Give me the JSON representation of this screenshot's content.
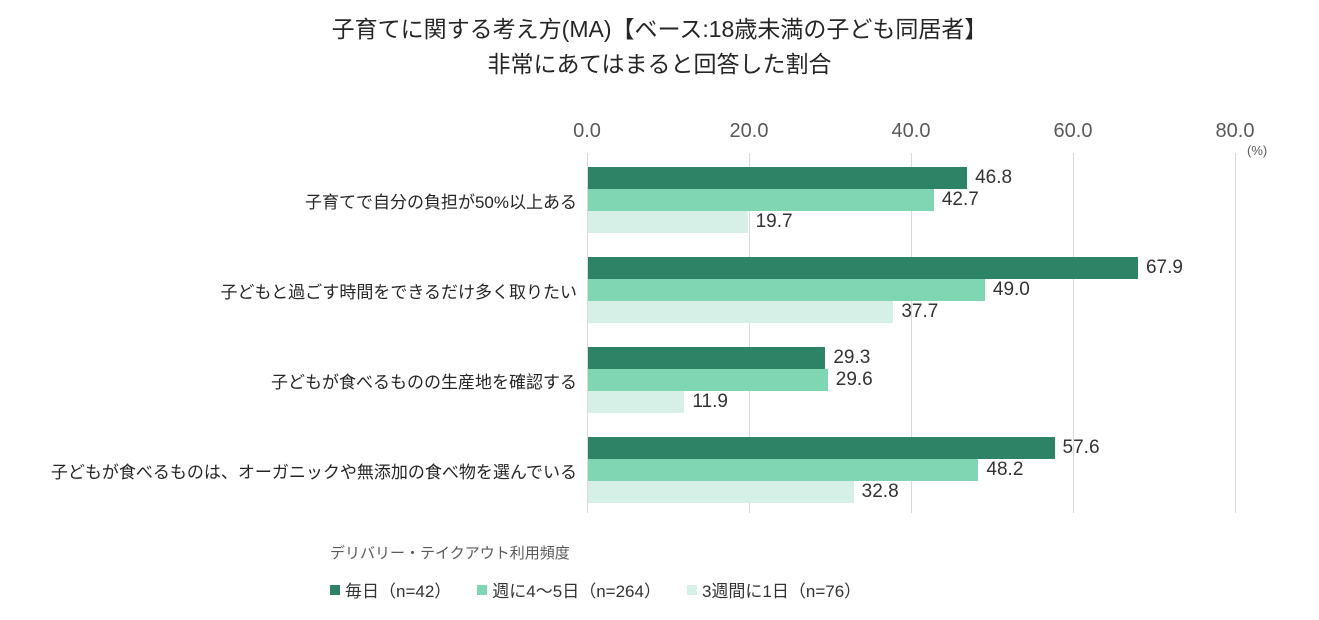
{
  "title": {
    "line1": "子育てに関する考え方(MA)【ベース:18歳未満の子ども同居者】",
    "line2": "非常にあてはまると回答した割合"
  },
  "axis": {
    "ticks": [
      "0.0",
      "20.0",
      "40.0",
      "60.0",
      "80.0"
    ],
    "unit": "(%)"
  },
  "legend": {
    "title": "デリバリー・テイクアウト利用頻度"
  },
  "colors": {
    "gridline": "#d9d9d9",
    "axis_text": "#595959",
    "value_text": "#333333"
  },
  "chart_data": {
    "type": "bar",
    "orientation": "horizontal",
    "title": "子育てに関する考え方(MA)【ベース:18歳未満の子ども同居者】",
    "subtitle": "非常にあてはまると回答した割合",
    "xlabel": "(%)",
    "xlim": [
      0,
      80
    ],
    "xticks": [
      0,
      20,
      40,
      60,
      80
    ],
    "grid": true,
    "legend_position": "bottom",
    "legend_title": "デリバリー・テイクアウト利用頻度",
    "categories": [
      "子育てで自分の負担が50%以上ある",
      "子どもと過ごす時間をできるだけ多く取りたい",
      "子どもが食べるものの生産地を確認する",
      "子どもが食べるものは、オーガニックや無添加の食べ物を選んでいる"
    ],
    "series": [
      {
        "name": "毎日（n=42）",
        "color": "#2d8365",
        "values": [
          46.8,
          67.9,
          29.3,
          57.6
        ],
        "labels": [
          "46.8",
          "67.9",
          "29.3",
          "57.6"
        ]
      },
      {
        "name": "週に4～5日（n=264）",
        "color": "#7fd6b3",
        "values": [
          42.7,
          49.0,
          29.6,
          48.2
        ],
        "labels": [
          "42.7",
          "49.0",
          "29.6",
          "48.2"
        ]
      },
      {
        "name": "3週間に1日（n=76）",
        "color": "#d6f0e7",
        "values": [
          19.7,
          37.7,
          11.9,
          32.8
        ],
        "labels": [
          "19.7",
          "37.7",
          "11.9",
          "32.8"
        ]
      }
    ]
  }
}
